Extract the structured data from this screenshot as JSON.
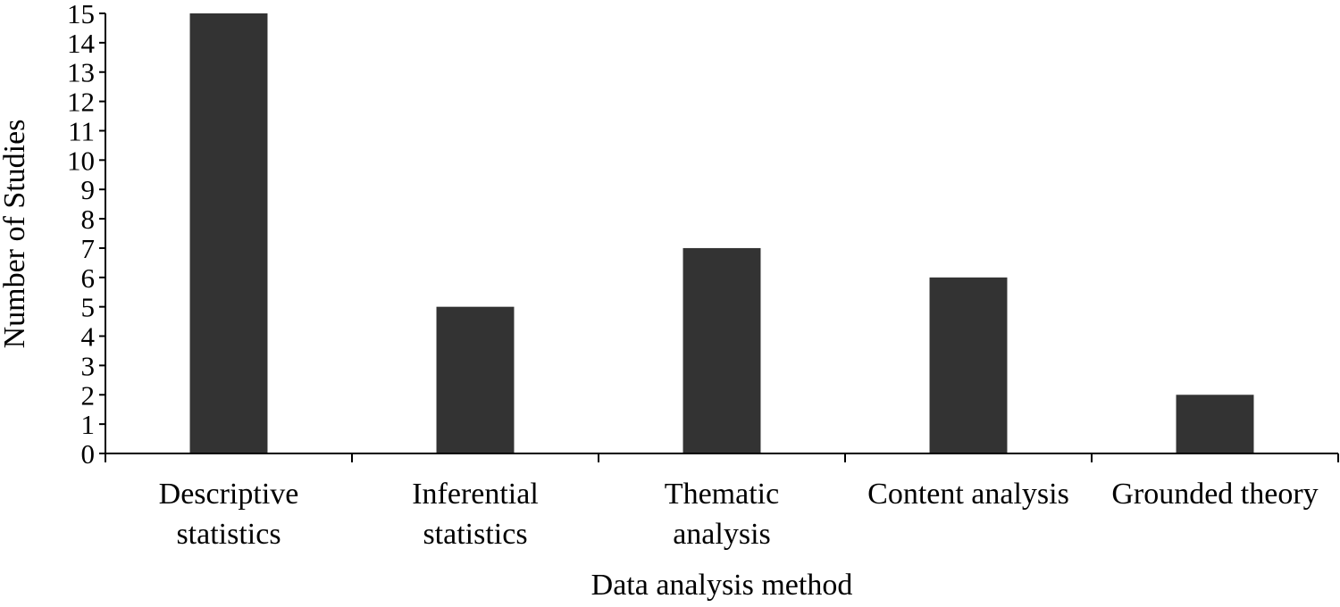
{
  "chart_data": {
    "type": "bar",
    "title": "",
    "xlabel": "Data analysis method",
    "ylabel": "Number of Studies",
    "categories": [
      [
        "Descriptive",
        "statistics"
      ],
      [
        "Inferential",
        "statistics"
      ],
      [
        "Thematic",
        "analysis"
      ],
      [
        "Content analysis"
      ],
      [
        "Grounded theory"
      ]
    ],
    "values": [
      15,
      5,
      7,
      6,
      2
    ],
    "ylim": [
      0,
      15
    ],
    "yticks": [
      0,
      1,
      2,
      3,
      4,
      5,
      6,
      7,
      8,
      9,
      10,
      11,
      12,
      13,
      14,
      15
    ],
    "grid": false,
    "legend": "none",
    "bar_color": "#333333",
    "axis_color": "#000000"
  }
}
